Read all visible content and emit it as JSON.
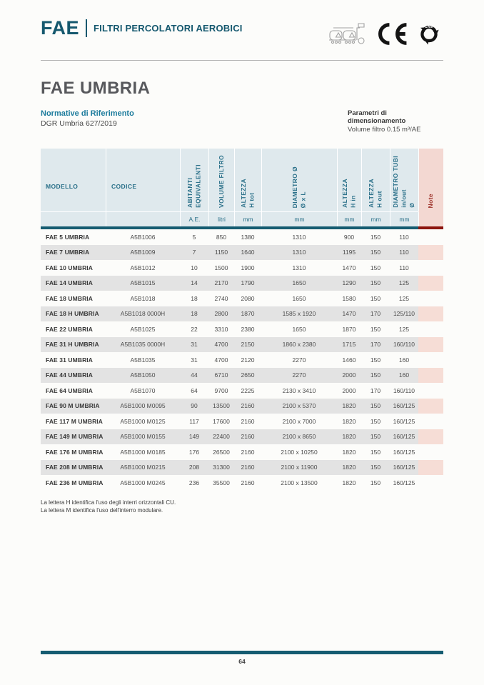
{
  "brand": {
    "logo": "FAE",
    "tagline": "FILTRI PERCOLATORI AEROBICI",
    "cam_text": "CAM",
    "icons": [
      "truck-tanks-recycle-icon",
      "ce-mark-icon",
      "recycle-cam-icon"
    ],
    "colors": {
      "teal": "#155c71",
      "header_light_blue": "#dfe9ed",
      "header_text_teal": "#2a7089",
      "note_header_pink": "#f3d8d2",
      "note_cell_pink": "#f6ddd6",
      "note_bar_dark_red": "#8c150e",
      "note_text_red": "#9c3028",
      "stripe_gray": "#e3e3e3",
      "accent_blue": "#1b7b9c"
    }
  },
  "page": {
    "title": "FAE UMBRIA",
    "normative_heading": "Normative di Riferimento",
    "normative_value": "DGR Umbria 627/2019",
    "params_heading": "Parametri di dimensionamento",
    "params_value": "Volume filtro 0.15 m³/AE",
    "footnotes": [
      "La lettera H identifica l'uso degli interri orizzontali CU.",
      "La lettera M identifica l'uso dell'interro modulare."
    ],
    "page_number": "64"
  },
  "table": {
    "columns": [
      {
        "key": "modello",
        "label": "MODELLO",
        "unit": "",
        "orientation": "horizontal",
        "width": 91
      },
      {
        "key": "codice",
        "label": "CODICE",
        "unit": "",
        "orientation": "horizontal",
        "width": 104
      },
      {
        "key": "ae",
        "label": "ABITANTI\nEQUIVALENTI",
        "unit": "A.E.",
        "orientation": "vertical",
        "width": 40
      },
      {
        "key": "volume",
        "label": "VOLUME FILTRO",
        "unit": "litri",
        "orientation": "vertical",
        "width": 36
      },
      {
        "key": "htot",
        "label": "ALTEZZA\nH tot",
        "unit": "mm",
        "orientation": "vertical",
        "width": 38
      },
      {
        "key": "diametro",
        "label": "DIAMETRO Ø\nØ x L",
        "unit": "mm",
        "orientation": "vertical",
        "width": 106
      },
      {
        "key": "hin",
        "label": "ALTEZZA\nH in",
        "unit": "mm",
        "orientation": "vertical",
        "width": 34
      },
      {
        "key": "hout",
        "label": "ALTEZZA\nH out",
        "unit": "mm",
        "orientation": "vertical",
        "width": 40
      },
      {
        "key": "tubi",
        "label": "DIAMETRO TUBI\nin/out\nØ",
        "unit": "mm",
        "orientation": "vertical",
        "width": 40
      },
      {
        "key": "note",
        "label": "Note",
        "unit": "",
        "orientation": "vertical",
        "width": 35
      }
    ],
    "rows": [
      [
        "FAE 5 UMBRIA",
        "A5B1006",
        "5",
        "850",
        "1380",
        "1310",
        "900",
        "150",
        "110",
        ""
      ],
      [
        "FAE 7 UMBRIA",
        "A5B1009",
        "7",
        "1150",
        "1640",
        "1310",
        "1195",
        "150",
        "110",
        ""
      ],
      [
        "FAE 10 UMBRIA",
        "A5B1012",
        "10",
        "1500",
        "1900",
        "1310",
        "1470",
        "150",
        "110",
        ""
      ],
      [
        "FAE 14 UMBRIA",
        "A5B1015",
        "14",
        "2170",
        "1790",
        "1650",
        "1290",
        "150",
        "125",
        ""
      ],
      [
        "FAE 18 UMBRIA",
        "A5B1018",
        "18",
        "2740",
        "2080",
        "1650",
        "1580",
        "150",
        "125",
        ""
      ],
      [
        "FAE 18 H UMBRIA",
        "A5B1018 0000H",
        "18",
        "2800",
        "1870",
        "1585 x 1920",
        "1470",
        "170",
        "125/110",
        ""
      ],
      [
        "FAE 22 UMBRIA",
        "A5B1025",
        "22",
        "3310",
        "2380",
        "1650",
        "1870",
        "150",
        "125",
        ""
      ],
      [
        "FAE 31 H UMBRIA",
        "A5B1035 0000H",
        "31",
        "4700",
        "2150",
        "1860 x 2380",
        "1715",
        "170",
        "160/110",
        ""
      ],
      [
        "FAE 31 UMBRIA",
        "A5B1035",
        "31",
        "4700",
        "2120",
        "2270",
        "1460",
        "150",
        "160",
        ""
      ],
      [
        "FAE 44 UMBRIA",
        "A5B1050",
        "44",
        "6710",
        "2650",
        "2270",
        "2000",
        "150",
        "160",
        ""
      ],
      [
        "FAE 64 UMBRIA",
        "A5B1070",
        "64",
        "9700",
        "2225",
        "2130 x 3410",
        "2000",
        "170",
        "160/110",
        ""
      ],
      [
        "FAE 90 M UMBRIA",
        "A5B1000 M0095",
        "90",
        "13500",
        "2160",
        "2100 x 5370",
        "1820",
        "150",
        "160/125",
        ""
      ],
      [
        "FAE 117 M UMBRIA",
        "A5B1000 M0125",
        "117",
        "17600",
        "2160",
        "2100 x 7000",
        "1820",
        "150",
        "160/125",
        ""
      ],
      [
        "FAE 149 M UMBRIA",
        "A5B1000 M0155",
        "149",
        "22400",
        "2160",
        "2100 x 8650",
        "1820",
        "150",
        "160/125",
        ""
      ],
      [
        "FAE 176 M UMBRIA",
        "A5B1000 M0185",
        "176",
        "26500",
        "2160",
        "2100 x 10250",
        "1820",
        "150",
        "160/125",
        ""
      ],
      [
        "FAE 208 M UMBRIA",
        "A5B1000 M0215",
        "208",
        "31300",
        "2160",
        "2100 x 11900",
        "1820",
        "150",
        "160/125",
        ""
      ],
      [
        "FAE 236 M UMBRIA",
        "A5B1000 M0245",
        "236",
        "35500",
        "2160",
        "2100 x 13500",
        "1820",
        "150",
        "160/125",
        ""
      ]
    ]
  }
}
